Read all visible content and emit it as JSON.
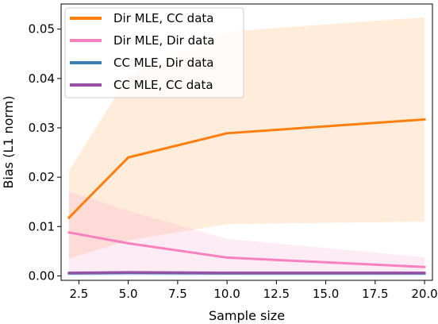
{
  "chart_data": {
    "type": "line",
    "xlabel": "Sample size",
    "ylabel": "Bias (L1 norm)",
    "xlim": [
      1.6,
      20.4
    ],
    "ylim": [
      -0.0009,
      0.0551
    ],
    "xticks": [
      2.5,
      5.0,
      7.5,
      10.0,
      12.5,
      15.0,
      17.5,
      20.0
    ],
    "xtick_labels": [
      "2.5",
      "5.0",
      "7.5",
      "10.0",
      "12.5",
      "15.0",
      "17.5",
      "20.0"
    ],
    "yticks": [
      0.0,
      0.01,
      0.02,
      0.03,
      0.04,
      0.05
    ],
    "ytick_labels": [
      "0.00",
      "0.01",
      "0.02",
      "0.03",
      "0.04",
      "0.05"
    ],
    "grid": false,
    "legend_position": "top-left",
    "x": [
      2,
      5,
      10,
      20
    ],
    "series": [
      {
        "name": "Dir MLE, CC data",
        "color": "#ff7f0e",
        "values": [
          0.0118,
          0.024,
          0.0289,
          0.0317
        ],
        "band_lower": [
          0.0035,
          0.0072,
          0.0105,
          0.011
        ],
        "band_upper": [
          0.0213,
          0.0405,
          0.0495,
          0.0524
        ]
      },
      {
        "name": "Dir MLE, Dir data",
        "color": "#f781bf",
        "values": [
          0.0088,
          0.0066,
          0.0037,
          0.0018
        ],
        "band_lower": [
          0.0005,
          0.0005,
          0.0003,
          0.0002
        ],
        "band_upper": [
          0.0171,
          0.0132,
          0.0075,
          0.0038
        ]
      },
      {
        "name": "CC MLE, Dir data",
        "color": "#377eb8",
        "values": [
          0.0005,
          0.0006,
          0.0005,
          0.0005
        ],
        "band_lower": [
          0.0001,
          0.0001,
          0.0001,
          0.0001
        ],
        "band_upper": [
          0.0009,
          0.001,
          0.0009,
          0.0009
        ]
      },
      {
        "name": "CC MLE, CC data",
        "color": "#984ea3",
        "values": [
          0.0006,
          0.0007,
          0.0006,
          0.0006
        ],
        "band_lower": [
          0.0002,
          0.0002,
          0.0002,
          0.0002
        ],
        "band_upper": [
          0.001,
          0.0011,
          0.001,
          0.001
        ]
      }
    ]
  }
}
